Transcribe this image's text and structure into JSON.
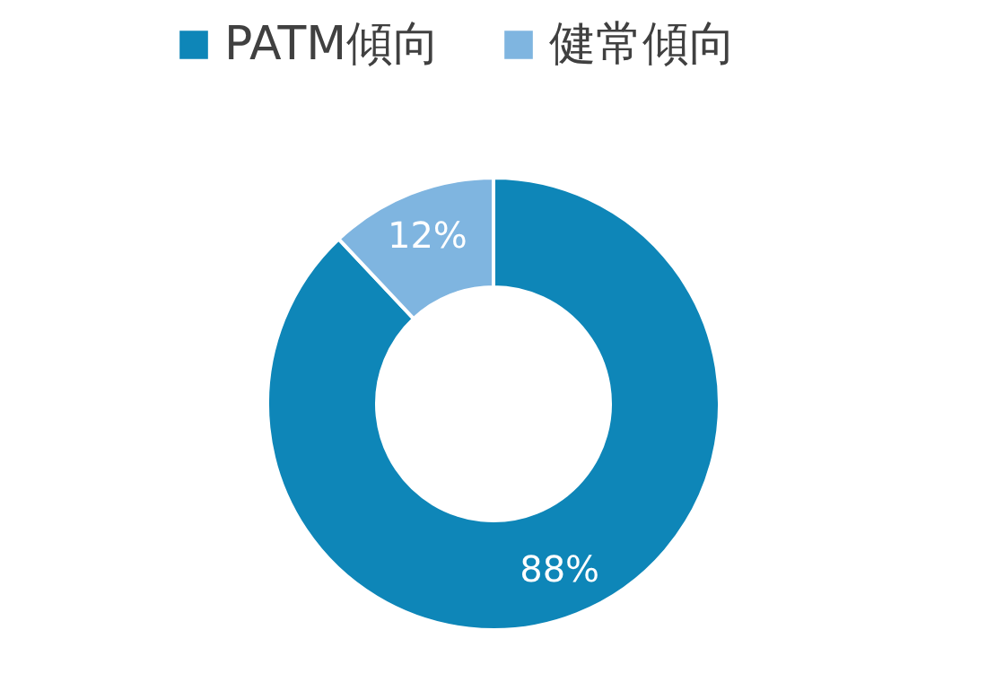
{
  "chart_data": {
    "type": "donut",
    "categories": [
      "PATM傾向",
      "健常傾向"
    ],
    "values": [
      88,
      12
    ],
    "colors": [
      "#0e86b8",
      "#7fb5e0"
    ],
    "value_labels": [
      "88%",
      "12%"
    ],
    "legend": "top"
  }
}
